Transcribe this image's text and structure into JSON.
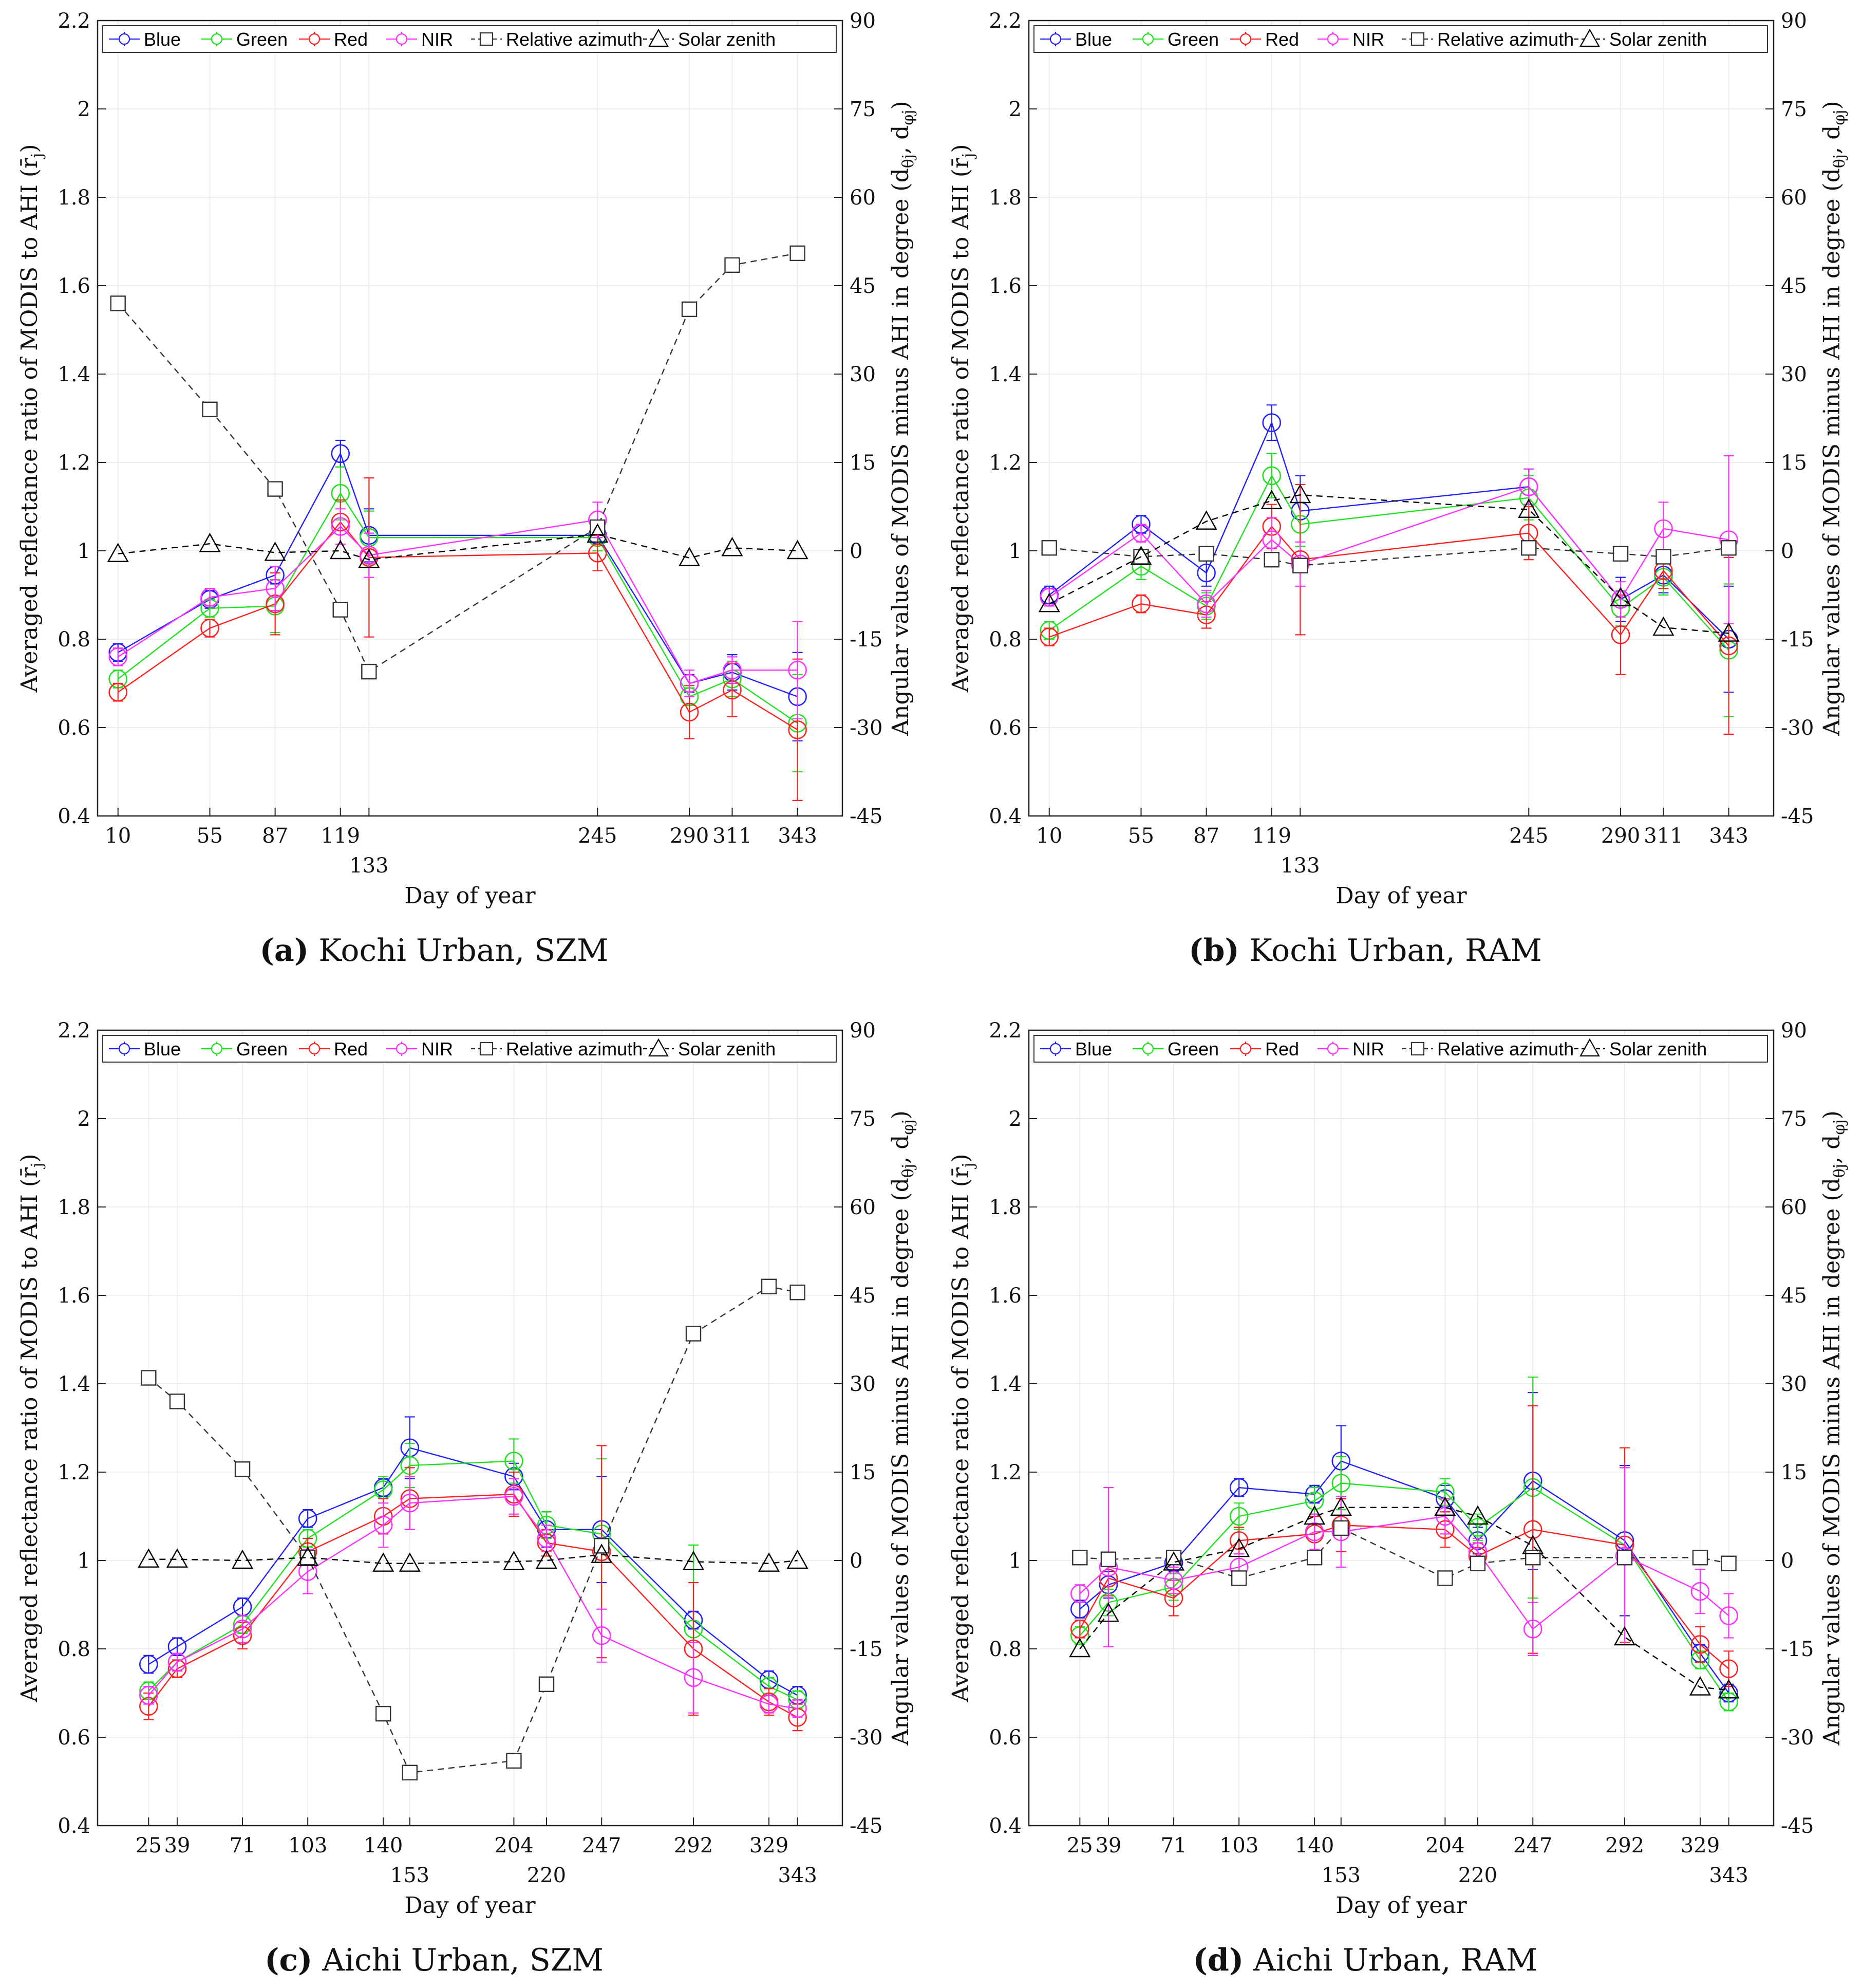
{
  "figure": {
    "panel_common": {
      "xlabel": "Day of year",
      "ylabel_left": "Averaged reflectance ratio of MODIS to AHI (r̄",
      "ylabel_left_sub": "j",
      "ylabel_left_close": ")",
      "ylabel_right": "Angular values of MODIS minus AHI in degree (d",
      "ylabel_right_sub1": "θj",
      "ylabel_right_mid": ", d",
      "ylabel_right_sub2": "φj",
      "ylabel_right_close": ")",
      "ylim_left": [
        0.4,
        2.2
      ],
      "yticks_left": [
        "0.4",
        "0.6",
        "0.8",
        "1",
        "1.2",
        "1.4",
        "1.6",
        "1.8",
        "2",
        "2.2"
      ],
      "ylim_right": [
        -45,
        90
      ],
      "yticks_right": [
        "-45",
        "-30",
        "-15",
        "0",
        "15",
        "30",
        "45",
        "60",
        "75",
        "90"
      ],
      "legend": [
        "Blue",
        "Green",
        "Red",
        "NIR",
        "Relative azimuth",
        "Solar zenith"
      ],
      "series_colors": {
        "Blue": "#2020ff",
        "Green": "#20e020",
        "Red": "#ff2020",
        "NIR": "#ff30ff",
        "Relative azimuth": "#333333",
        "Solar zenith": "#000000"
      }
    }
  },
  "chart_data": [
    {
      "type": "line",
      "caption_letter": "(a)",
      "caption_text": " Kochi Urban, SZM",
      "xlim": [
        0,
        365
      ],
      "x": [
        10,
        55,
        87,
        119,
        133,
        245,
        290,
        311,
        343
      ],
      "xtick_labels": [
        "10",
        "55",
        "87",
        "119",
        "133",
        "245",
        "290",
        "311",
        "343"
      ],
      "xtick_second_row": [
        "133"
      ],
      "series": [
        {
          "name": "Blue",
          "values": [
            0.77,
            0.89,
            0.945,
            1.22,
            1.035,
            1.035,
            0.7,
            0.725,
            0.67
          ],
          "err": [
            0.02,
            0.02,
            0.02,
            0.03,
            0.06,
            0.02,
            0.02,
            0.04,
            0.1
          ]
        },
        {
          "name": "Green",
          "values": [
            0.71,
            0.87,
            0.875,
            1.13,
            1.03,
            1.03,
            0.67,
            0.71,
            0.61
          ],
          "err": [
            0.02,
            0.02,
            0.06,
            0.06,
            0.06,
            0.03,
            0.02,
            0.04,
            0.11
          ]
        },
        {
          "name": "Red",
          "values": [
            0.68,
            0.825,
            0.88,
            1.065,
            0.985,
            0.995,
            0.635,
            0.685,
            0.595
          ],
          "err": [
            0.02,
            0.02,
            0.07,
            0.05,
            0.18,
            0.04,
            0.06,
            0.06,
            0.16
          ]
        },
        {
          "name": "NIR",
          "values": [
            0.76,
            0.895,
            0.915,
            1.055,
            0.99,
            1.07,
            0.7,
            0.73,
            0.73
          ],
          "err": [
            0.02,
            0.02,
            0.05,
            0.04,
            0.05,
            0.04,
            0.03,
            0.03,
            0.11
          ]
        },
        {
          "name": "Relative azimuth",
          "axis": "right",
          "values": [
            42,
            24,
            10.5,
            -10,
            -20.5,
            4,
            41,
            48.5,
            50.5
          ]
        },
        {
          "name": "Solar zenith",
          "axis": "right",
          "values": [
            -0.5,
            1.2,
            -0.3,
            0,
            -1.5,
            2.8,
            -1.2,
            0.5,
            0
          ]
        }
      ]
    },
    {
      "type": "line",
      "caption_letter": "(b)",
      "caption_text": " Kochi Urban, RAM",
      "xlim": [
        0,
        365
      ],
      "x": [
        10,
        55,
        87,
        119,
        133,
        245,
        290,
        311,
        343
      ],
      "xtick_labels": [
        "10",
        "55",
        "87",
        "119",
        "133",
        "245",
        "290",
        "311",
        "343"
      ],
      "xtick_second_row": [
        "133"
      ],
      "series": [
        {
          "name": "Blue",
          "values": [
            0.9,
            1.06,
            0.95,
            1.29,
            1.09,
            1.145,
            0.89,
            0.945,
            0.8
          ],
          "err": [
            0.02,
            0.02,
            0.03,
            0.04,
            0.08,
            0.04,
            0.05,
            0.04,
            0.12
          ]
        },
        {
          "name": "Green",
          "values": [
            0.82,
            0.965,
            0.875,
            1.17,
            1.06,
            1.12,
            0.87,
            0.94,
            0.775
          ],
          "err": [
            0.02,
            0.03,
            0.03,
            0.05,
            0.05,
            0.05,
            0.04,
            0.04,
            0.15
          ]
        },
        {
          "name": "Red",
          "values": [
            0.805,
            0.88,
            0.855,
            1.055,
            0.98,
            1.04,
            0.81,
            0.955,
            0.785
          ],
          "err": [
            0.02,
            0.02,
            0.03,
            0.05,
            0.17,
            0.06,
            0.09,
            0.04,
            0.2
          ]
        },
        {
          "name": "NIR",
          "values": [
            0.895,
            1.04,
            0.88,
            1.025,
            0.97,
            1.145,
            0.89,
            1.05,
            1.025
          ],
          "err": [
            0.02,
            0.02,
            0.03,
            0.05,
            0.05,
            0.04,
            0.04,
            0.06,
            0.19
          ]
        },
        {
          "name": "Relative azimuth",
          "axis": "right",
          "values": [
            0.5,
            -1,
            -0.5,
            -1.5,
            -2.5,
            0.5,
            -0.5,
            -1,
            0.5
          ]
        },
        {
          "name": "Solar zenith",
          "axis": "right",
          "values": [
            -9,
            -1,
            5,
            8.5,
            9.5,
            7,
            -8,
            -13,
            -14
          ]
        }
      ]
    },
    {
      "type": "line",
      "caption_letter": "(c)",
      "caption_text": " Aichi Urban, SZM",
      "xlim": [
        0,
        365
      ],
      "x": [
        25,
        39,
        71,
        103,
        140,
        153,
        204,
        220,
        247,
        292,
        329,
        343
      ],
      "xtick_labels": [
        "25",
        "39",
        "71",
        "103",
        "140",
        "153",
        "204",
        "220",
        "247",
        "292",
        "329",
        "343"
      ],
      "xtick_second_row": [
        "153",
        "220",
        "343"
      ],
      "series": [
        {
          "name": "Blue",
          "values": [
            0.765,
            0.805,
            0.895,
            1.095,
            1.165,
            1.255,
            1.19,
            1.07,
            1.07,
            0.865,
            0.73,
            0.695
          ],
          "err": [
            0.02,
            0.02,
            0.02,
            0.02,
            0.02,
            0.07,
            0.03,
            0.04,
            0.12,
            0.02,
            0.02,
            0.02
          ]
        },
        {
          "name": "Green",
          "values": [
            0.705,
            0.77,
            0.855,
            1.05,
            1.16,
            1.215,
            1.225,
            1.08,
            1.06,
            0.845,
            0.715,
            0.685
          ],
          "err": [
            0.02,
            0.02,
            0.02,
            0.02,
            0.03,
            0.05,
            0.05,
            0.03,
            0.17,
            0.19,
            0.02,
            0.02
          ]
        },
        {
          "name": "Red",
          "values": [
            0.67,
            0.755,
            0.83,
            1.02,
            1.1,
            1.14,
            1.15,
            1.04,
            1.02,
            0.8,
            0.68,
            0.645
          ],
          "err": [
            0.03,
            0.02,
            0.03,
            0.03,
            0.04,
            0.07,
            0.05,
            0.03,
            0.24,
            0.15,
            0.03,
            0.03
          ]
        },
        {
          "name": "NIR",
          "values": [
            0.695,
            0.77,
            0.845,
            0.975,
            1.08,
            1.13,
            1.145,
            1.05,
            0.83,
            0.735,
            0.675,
            0.665
          ],
          "err": [
            0.02,
            0.02,
            0.03,
            0.05,
            0.05,
            0.06,
            0.04,
            0.03,
            0.06,
            0.08,
            0.02,
            0.02
          ]
        },
        {
          "name": "Relative azimuth",
          "axis": "right",
          "values": [
            31,
            27,
            15.5,
            0.5,
            -26,
            -36,
            -34,
            -21,
            2.5,
            38.5,
            46.5,
            45.5
          ]
        },
        {
          "name": "Solar zenith",
          "axis": "right",
          "values": [
            0.2,
            0.2,
            0,
            0.5,
            -0.5,
            -0.5,
            -0.2,
            0,
            1,
            -0.2,
            -0.5,
            0
          ]
        }
      ]
    },
    {
      "type": "line",
      "caption_letter": "(d)",
      "caption_text": " Aichi Urban, RAM",
      "xlim": [
        0,
        365
      ],
      "x": [
        25,
        39,
        71,
        103,
        140,
        153,
        204,
        220,
        247,
        292,
        329,
        343
      ],
      "xtick_labels": [
        "25",
        "39",
        "71",
        "103",
        "140",
        "153",
        "204",
        "220",
        "247",
        "292",
        "329",
        "343"
      ],
      "xtick_second_row": [
        "153",
        "220",
        "343"
      ],
      "series": [
        {
          "name": "Blue",
          "values": [
            0.89,
            0.945,
            0.995,
            1.165,
            1.15,
            1.225,
            1.14,
            1.045,
            1.18,
            1.045,
            0.79,
            0.7
          ],
          "err": [
            0.02,
            0.03,
            0.02,
            0.02,
            0.02,
            0.08,
            0.03,
            0.03,
            0.2,
            0.17,
            0.02,
            0.02
          ]
        },
        {
          "name": "Green",
          "values": [
            0.83,
            0.905,
            0.94,
            1.1,
            1.135,
            1.175,
            1.155,
            1.075,
            1.165,
            1.035,
            0.775,
            0.68
          ],
          "err": [
            0.02,
            0.03,
            0.03,
            0.03,
            0.03,
            0.06,
            0.03,
            0.03,
            0.25,
            0.22,
            0.02,
            0.02
          ]
        },
        {
          "name": "Red",
          "values": [
            0.845,
            0.96,
            0.915,
            1.045,
            1.06,
            1.08,
            1.07,
            1.01,
            1.07,
            1.035,
            0.81,
            0.755
          ],
          "err": [
            0.02,
            0.04,
            0.04,
            0.03,
            0.04,
            0.06,
            0.04,
            0.03,
            0.28,
            0.22,
            0.04,
            0.04
          ]
        },
        {
          "name": "NIR",
          "values": [
            0.925,
            0.985,
            0.955,
            0.985,
            1.065,
            1.065,
            1.1,
            1.02,
            0.845,
            1.01,
            0.93,
            0.875
          ],
          "err": [
            0.02,
            0.18,
            0.03,
            0.03,
            0.04,
            0.08,
            0.04,
            0.03,
            0.06,
            0.2,
            0.05,
            0.05
          ]
        },
        {
          "name": "Relative azimuth",
          "axis": "right",
          "values": [
            0.5,
            0.2,
            0.5,
            -3,
            0.5,
            5.5,
            -3,
            -0.5,
            0.5,
            0.5,
            0.5,
            -0.5
          ]
        },
        {
          "name": "Solar zenith",
          "axis": "right",
          "values": [
            -15,
            -9,
            -0.3,
            2,
            7.5,
            9,
            9,
            7.5,
            2.5,
            -13,
            -21.5,
            -22
          ]
        }
      ]
    }
  ]
}
